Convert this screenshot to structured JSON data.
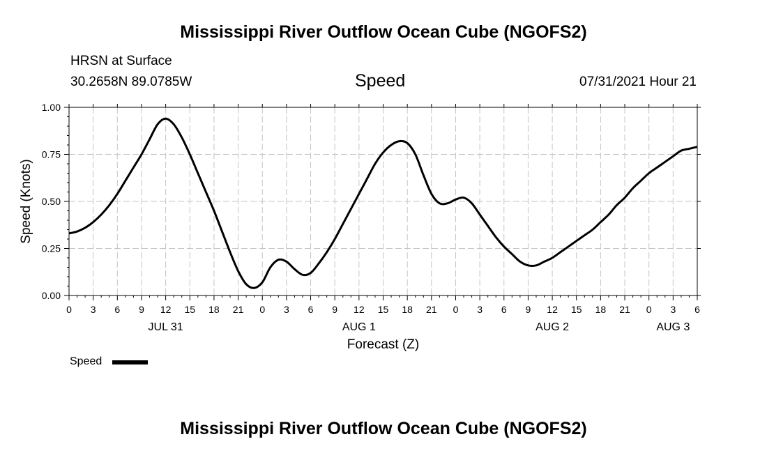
{
  "header": {
    "title_top": "Mississippi River Outflow Ocean Cube (NGOFS2)",
    "title_bottom": "Mississippi River Outflow Ocean Cube (NGOFS2)",
    "station": "HRSN at Surface",
    "coords": "30.2658N  89.0785W",
    "variable": "Speed",
    "datetime": "07/31/2021 Hour 21"
  },
  "legend": {
    "label": "Speed"
  },
  "chart_data": {
    "type": "line",
    "title": "Speed",
    "xlabel": "Forecast (Z)",
    "ylabel": "Speed (Knots)",
    "xlim": [
      0,
      78
    ],
    "ylim": [
      0,
      1
    ],
    "grid": true,
    "x_tick_labels": [
      "0",
      "3",
      "6",
      "9",
      "12",
      "15",
      "18",
      "21",
      "0",
      "3",
      "6",
      "9",
      "12",
      "15",
      "18",
      "21",
      "0",
      "3",
      "6",
      "9",
      "12",
      "15",
      "18",
      "21",
      "0",
      "3",
      "6"
    ],
    "y_ticks": [
      0,
      0.25,
      0.5,
      0.75,
      1.0
    ],
    "y_tick_labels": [
      "0.00",
      "0.25",
      "0.50",
      "0.75",
      "1.00"
    ],
    "day_labels": [
      {
        "label": "JUL 31",
        "hour": 12
      },
      {
        "label": "AUG 1",
        "hour": 36
      },
      {
        "label": "AUG 2",
        "hour": 60
      },
      {
        "label": "AUG 3",
        "hour": 75
      }
    ],
    "series": [
      {
        "name": "Speed",
        "x": [
          0,
          1,
          2,
          3,
          4,
          5,
          6,
          7,
          8,
          9,
          10,
          11,
          12,
          13,
          14,
          15,
          16,
          17,
          18,
          19,
          20,
          21,
          22,
          23,
          24,
          25,
          26,
          27,
          28,
          29,
          30,
          31,
          32,
          33,
          34,
          35,
          36,
          37,
          38,
          39,
          40,
          41,
          42,
          43,
          44,
          45,
          46,
          47,
          48,
          49,
          50,
          51,
          52,
          53,
          54,
          55,
          56,
          57,
          58,
          59,
          60,
          61,
          62,
          63,
          64,
          65,
          66,
          67,
          68,
          69,
          70,
          71,
          72,
          73,
          74,
          75,
          76,
          77,
          78
        ],
        "values": [
          0.33,
          0.34,
          0.36,
          0.39,
          0.43,
          0.48,
          0.54,
          0.61,
          0.68,
          0.75,
          0.83,
          0.91,
          0.94,
          0.91,
          0.84,
          0.75,
          0.65,
          0.55,
          0.45,
          0.34,
          0.23,
          0.13,
          0.06,
          0.04,
          0.07,
          0.15,
          0.19,
          0.18,
          0.14,
          0.11,
          0.12,
          0.17,
          0.23,
          0.3,
          0.38,
          0.46,
          0.54,
          0.62,
          0.7,
          0.76,
          0.8,
          0.82,
          0.81,
          0.75,
          0.64,
          0.54,
          0.49,
          0.49,
          0.51,
          0.52,
          0.49,
          0.43,
          0.37,
          0.31,
          0.26,
          0.22,
          0.18,
          0.16,
          0.16,
          0.18,
          0.2,
          0.23,
          0.26,
          0.29,
          0.32,
          0.35,
          0.39,
          0.43,
          0.48,
          0.52,
          0.57,
          0.61,
          0.65,
          0.68,
          0.71,
          0.74,
          0.77,
          0.78,
          0.79
        ]
      }
    ]
  }
}
